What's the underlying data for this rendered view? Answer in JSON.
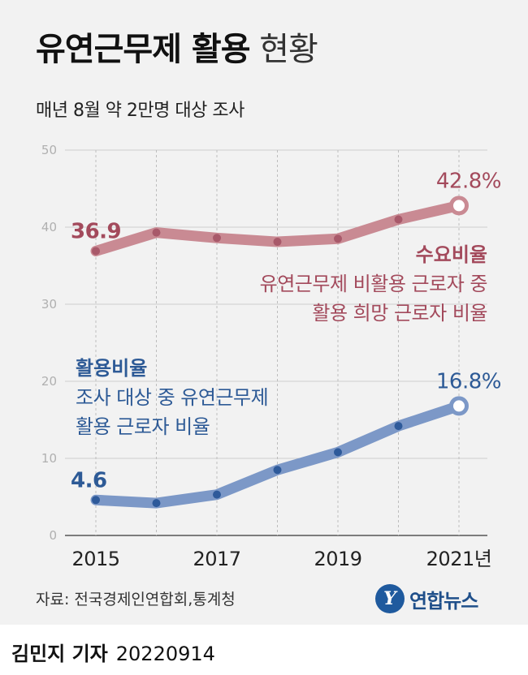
{
  "header": {
    "title_bold": "유연근무제 활용",
    "title_light": "현황",
    "subtitle": "매년 8월 약 2만명 대상 조사"
  },
  "chart_data": {
    "type": "line",
    "title": "유연근무제 활용 현황",
    "subtitle": "매년 8월 약 2만명 대상 조사",
    "x": [
      2015,
      2016,
      2017,
      2018,
      2019,
      2020,
      2021
    ],
    "x_tick_labels": [
      "2015",
      "2017",
      "2019",
      "2021년"
    ],
    "x_tick_values": [
      2015,
      2017,
      2019,
      2021
    ],
    "y_ticks": [
      0,
      10,
      20,
      30,
      40,
      50
    ],
    "ylim": [
      0,
      50
    ],
    "grid": "horizontal",
    "series": [
      {
        "name": "수요비율",
        "description": [
          "유연근무제 비활용 근로자 중",
          "활용 희망 근로자 비율"
        ],
        "values": [
          36.9,
          39.3,
          38.6,
          38.1,
          38.5,
          41.0,
          42.8
        ],
        "first_label": "36.9",
        "last_label": "42.8%",
        "color": "#c98a93",
        "marker_color": "#a8596a",
        "text_color": "#a34a5c"
      },
      {
        "name": "활용비율",
        "description": [
          "조사 대상 중 유연근무제",
          "활용 근로자 비율"
        ],
        "values": [
          4.6,
          4.2,
          5.3,
          8.5,
          10.8,
          14.2,
          16.8
        ],
        "first_label": "4.6",
        "last_label": "16.8%",
        "color": "#7c98c7",
        "marker_color": "#2e5a9a",
        "text_color": "#2d5a96"
      }
    ]
  },
  "footer": {
    "source": "자료: 전국경제인연합회,통계청",
    "logo_text": "연합뉴스",
    "author": "김민지 기자",
    "date": "20220914"
  }
}
